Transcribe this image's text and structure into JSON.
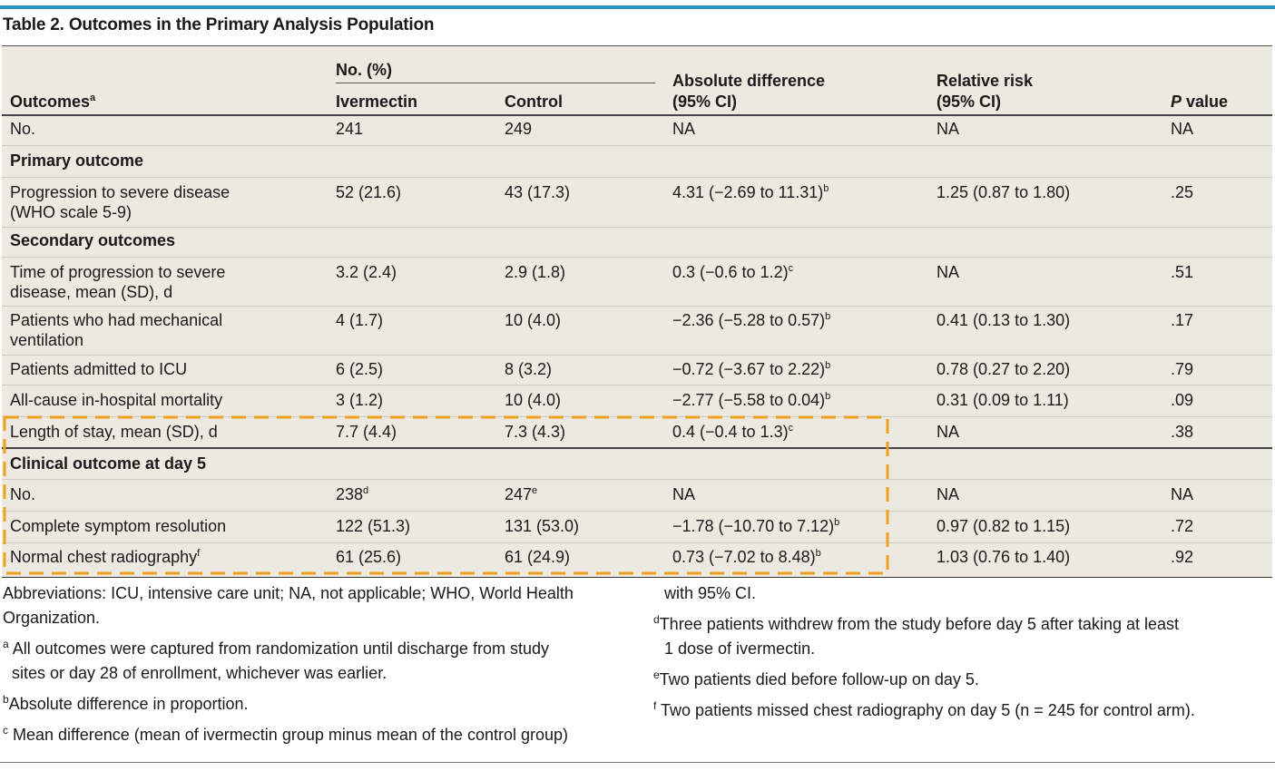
{
  "title": "Table 2. Outcomes in the Primary Analysis Population",
  "header": {
    "outcomes": "Outcomes",
    "outcomes_sup": "a",
    "no_pct": "No. (%)",
    "ivermectin": "Ivermectin",
    "control": "Control",
    "abs_diff_1": "Absolute difference",
    "abs_diff_2": "(95% CI)",
    "rr_1": "Relative risk",
    "rr_2": "(95% CI)",
    "p_italic": "P",
    "p_rest": " value"
  },
  "rows": {
    "no": {
      "label": "No.",
      "iv": "241",
      "ctrl": "249",
      "ad": "NA",
      "rr": "NA",
      "p": "NA"
    },
    "primary_section": "Primary outcome",
    "progression": {
      "label1": "Progression to severe disease",
      "label2": "(WHO scale 5-9)",
      "iv": "52 (21.6)",
      "ctrl": "43 (17.3)",
      "ad": "4.31 (−2.69 to 11.31)",
      "ad_sup": "b",
      "rr": "1.25 (0.87 to 1.80)",
      "p": ".25"
    },
    "secondary_section": "Secondary outcomes",
    "time_prog": {
      "label1": "Time of progression to severe",
      "label2": "disease, mean (SD), d",
      "iv": "3.2 (2.4)",
      "ctrl": "2.9 (1.8)",
      "ad": "0.3 (−0.6 to 1.2)",
      "ad_sup": "c",
      "rr": "NA",
      "p": ".51"
    },
    "mech_vent": {
      "label1": "Patients who had mechanical",
      "label2": "ventilation",
      "iv": "4 (1.7)",
      "ctrl": "10 (4.0)",
      "ad": "−2.36 (−5.28 to 0.57)",
      "ad_sup": "b",
      "rr": "0.41 (0.13 to 1.30)",
      "p": ".17"
    },
    "icu": {
      "label": "Patients admitted to ICU",
      "iv": "6 (2.5)",
      "ctrl": "8 (3.2)",
      "ad": "−0.72 (−3.67 to 2.22)",
      "ad_sup": "b",
      "rr": "0.78 (0.27 to 2.20)",
      "p": ".79"
    },
    "mortality": {
      "label": "All-cause in-hospital mortality",
      "iv": "3 (1.2)",
      "ctrl": "10 (4.0)",
      "ad": "−2.77 (−5.58 to 0.04)",
      "ad_sup": "b",
      "rr": "0.31 (0.09 to 1.11)",
      "p": ".09"
    },
    "los": {
      "label": "Length of stay, mean (SD), d",
      "iv": "7.7 (4.4)",
      "ctrl": "7.3 (4.3)",
      "ad": "0.4 (−0.4 to 1.3)",
      "ad_sup": "c",
      "rr": "NA",
      "p": ".38"
    },
    "day5_section": "Clinical outcome at day 5",
    "day5_no": {
      "label": "No.",
      "iv": "238",
      "iv_sup": "d",
      "ctrl": "247",
      "ctrl_sup": "e",
      "ad": "NA",
      "rr": "NA",
      "p": "NA"
    },
    "symptom": {
      "label": "Complete symptom resolution",
      "iv": "122 (51.3)",
      "ctrl": "131 (53.0)",
      "ad": "−1.78 (−10.70 to 7.12)",
      "ad_sup": "b",
      "rr": "0.97 (0.82 to 1.15)",
      "p": ".72"
    },
    "radiography": {
      "label": "Normal chest radiography",
      "label_sup": "f",
      "iv": "61 (25.6)",
      "ctrl": "61 (24.9)",
      "ad": "0.73 (−7.02 to 8.48)",
      "ad_sup": "b",
      "rr": "1.03 (0.76 to 1.40)",
      "p": ".92"
    }
  },
  "footnotes": {
    "abbrev_1": "Abbreviations: ICU, intensive care unit; NA, not applicable; WHO, World Health",
    "abbrev_2": "Organization.",
    "a_mark": "a",
    "a_1": "All outcomes were captured from randomization until discharge from study",
    "a_2": "sites or day 28 of enrollment, whichever was earlier.",
    "b_mark": "b",
    "b_1": "Absolute difference in proportion.",
    "c_mark": "c",
    "c_1": "Mean difference (mean of ivermectin group minus mean of the control group)",
    "c_2": "with 95% CI.",
    "d_mark": "d",
    "d_1": "Three patients withdrew from the study before day 5 after taking at least",
    "d_2": "1 dose of ivermectin.",
    "e_mark": "e",
    "e_1": "Two patients died before follow-up on day 5.",
    "f_mark": "f",
    "f_1": "Two patients missed chest radiography on day 5 (n = 245 for control arm)."
  },
  "colors": {
    "accent_bar": "#2a93b8",
    "panel_bg": "#ece9e1",
    "highlight_dash": "#f0a020"
  }
}
